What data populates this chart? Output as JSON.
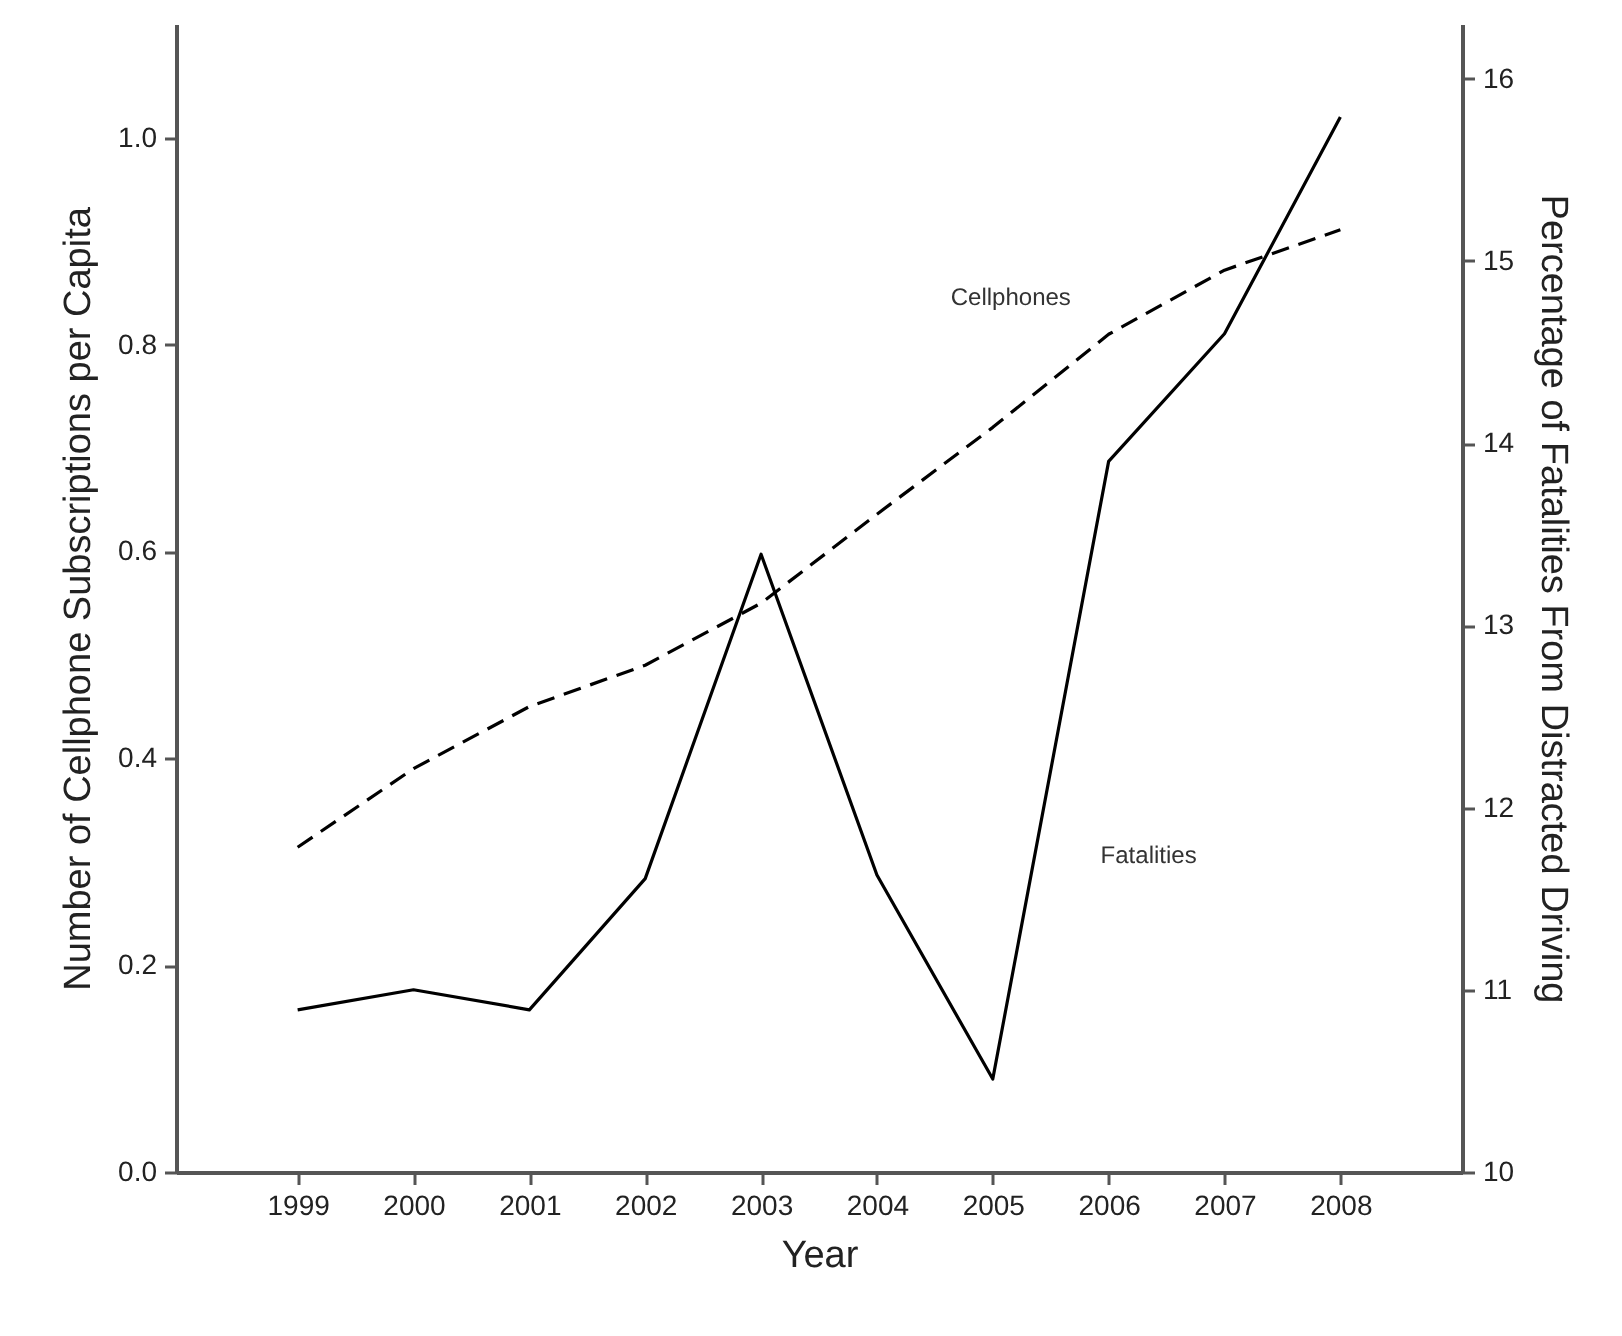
{
  "chart_data": {
    "type": "line",
    "xlabel": "Year",
    "ylabel": "Number of Cellphone Subscriptions per Capita",
    "y2label": "Percentage of Fatalities From Distracted Driving",
    "x": [
      1999,
      2000,
      2001,
      2002,
      2003,
      2004,
      2005,
      2006,
      2007,
      2008
    ],
    "series": [
      {
        "name": "Cellphones",
        "color": "#000000",
        "line_style": "dashed",
        "values": [
          0.314,
          0.39,
          0.45,
          0.49,
          0.55,
          0.636,
          0.72,
          0.81,
          0.872,
          0.911
        ]
      },
      {
        "name": "Fatalities",
        "color": "#000000",
        "line_style": "solid",
        "axis": "y2",
        "values": [
          10.89,
          11.0,
          10.89,
          11.61,
          13.39,
          11.63,
          10.51,
          13.9,
          14.6,
          15.79
        ]
      }
    ],
    "xlim": [
      1997.95,
      2009.05
    ],
    "xticks": [
      1999,
      2000,
      2001,
      2002,
      2003,
      2004,
      2005,
      2006,
      2007,
      2008
    ],
    "ylim": [
      0,
      1.11
    ],
    "yticks": [
      {
        "value": 0,
        "label": "0.0"
      },
      0.2,
      0.4,
      0.6,
      0.8,
      {
        "value": 1,
        "label": "1.0"
      }
    ],
    "y2lim": [
      10,
      16.3
    ],
    "y2ticks": [
      10,
      11,
      12,
      13,
      14,
      15,
      16
    ],
    "grid": false,
    "legend": false,
    "marker": "none"
  }
}
